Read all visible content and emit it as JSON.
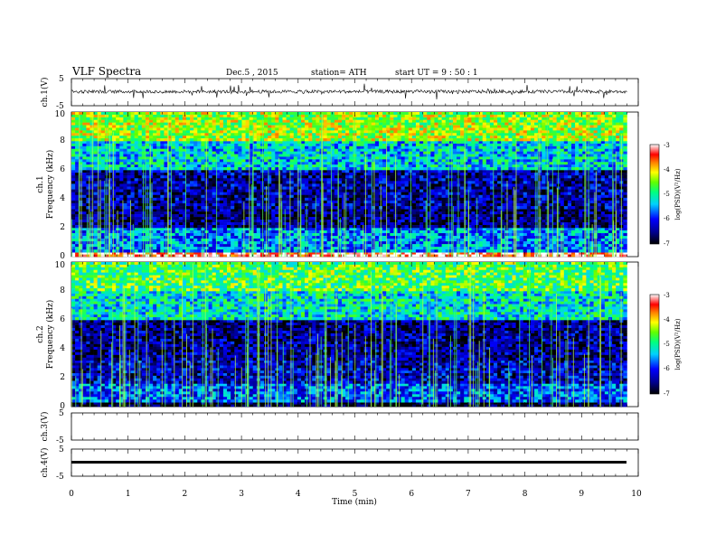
{
  "header": {
    "title": "VLF  Spectra",
    "date": "Dec.5  , 2015",
    "station": "station= ATH",
    "start_ut": "start  UT  =   9  : 50 : 1"
  },
  "chart_data": [
    {
      "type": "line",
      "panel": "ch1-waveform",
      "ylabel": "ch.1(V)",
      "xlim": [
        0,
        10
      ],
      "ylim": [
        -5,
        5
      ],
      "yticks": [
        "5",
        "-5"
      ],
      "x_end": 9.8,
      "baseline": 0.2,
      "description_values": {
        "noise_amplitude": 0.6,
        "spike_amplitude": 2.6
      }
    },
    {
      "type": "heatmap",
      "panel": "ch1-spectrogram",
      "ylabel_channel": "ch.1",
      "ylabel": "Frequency  (kHz)",
      "xlim": [
        0,
        10
      ],
      "ylim": [
        0,
        10
      ],
      "x_end": 9.8,
      "yticks": [
        "0",
        "2",
        "4",
        "6",
        "8",
        "10"
      ],
      "colorbar": {
        "label": "log(PSD)(V²/Hz)",
        "range": [
          -7,
          -3
        ],
        "ticks": [
          "-3",
          "-4",
          "-5",
          "-6",
          "-7"
        ]
      },
      "bands_kHz": [
        {
          "from": 0,
          "to": 0.3,
          "level": -3.2
        },
        {
          "from": 0.3,
          "to": 2,
          "level": -5.6
        },
        {
          "from": 2,
          "to": 3.3,
          "level": -6.6
        },
        {
          "from": 3.3,
          "to": 6,
          "level": -6.4
        },
        {
          "from": 6,
          "to": 8,
          "level": -5.3
        },
        {
          "from": 8,
          "to": 10,
          "level": -4.4
        }
      ]
    },
    {
      "type": "heatmap",
      "panel": "ch2-spectrogram",
      "ylabel_channel": "ch.2",
      "ylabel": "Frequency  (kHz)",
      "xlim": [
        0,
        10
      ],
      "ylim": [
        0,
        10
      ],
      "x_end": 9.8,
      "yticks": [
        "0",
        "2",
        "4",
        "6",
        "8",
        "10"
      ],
      "colorbar": {
        "label": "log(PSD)(V²/Hz)",
        "range": [
          -7,
          -3
        ],
        "ticks": [
          "-3",
          "-4",
          "-5",
          "-6",
          "-7"
        ]
      },
      "bands_kHz": [
        {
          "from": 0,
          "to": 0.3,
          "level": -6.9
        },
        {
          "from": 0.3,
          "to": 1.6,
          "level": -5.8
        },
        {
          "from": 1.6,
          "to": 3.2,
          "level": -6.3
        },
        {
          "from": 3.2,
          "to": 6,
          "level": -6.5
        },
        {
          "from": 6,
          "to": 8,
          "level": -5.2
        },
        {
          "from": 8,
          "to": 10,
          "level": -4.7
        }
      ]
    },
    {
      "type": "line",
      "panel": "ch3-waveform",
      "ylabel": "ch.3(V)",
      "xlim": [
        0,
        10
      ],
      "ylim": [
        -5,
        5
      ],
      "yticks": [
        "5",
        "-5"
      ],
      "x_end": 9.8
    },
    {
      "type": "line",
      "panel": "ch4-waveform",
      "ylabel": "ch.4(V)",
      "xlim": [
        0,
        10
      ],
      "ylim": [
        -5,
        5
      ],
      "yticks": [
        "5",
        "-5"
      ],
      "x_end": 9.8,
      "baseline": 0
    }
  ],
  "x_axis": {
    "label": "Time  (min)",
    "ticks": [
      "0",
      "1",
      "2",
      "3",
      "4",
      "5",
      "6",
      "7",
      "8",
      "9",
      "10"
    ]
  }
}
